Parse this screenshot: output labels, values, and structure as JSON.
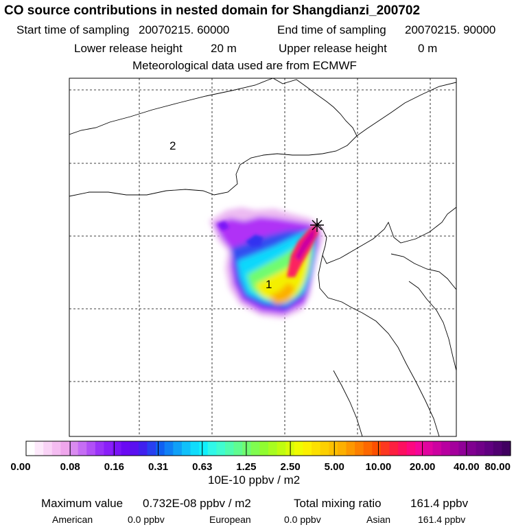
{
  "title": "CO  source contributions in nested domain for Shangdianzi_200702",
  "start_label": "Start time of sampling",
  "start_value": "20070215. 60000",
  "end_label": "End time of sampling",
  "end_value": "20070215. 90000",
  "lower_label": "Lower release height",
  "lower_value": "20 m",
  "upper_label": "Upper release height",
  "upper_value": "0 m",
  "met_line": "Meteorological data used are from ECMWF",
  "map": {
    "region_labels": [
      {
        "text": "2"
      },
      {
        "text": "1"
      }
    ],
    "receptor_marker": "star-marker"
  },
  "colorbar": {
    "tick_labels": [
      "0.00",
      "0.08",
      "0.16",
      "0.31",
      "0.63",
      "1.25",
      "2.50",
      "5.00",
      "10.00",
      "20.00",
      "40.00",
      "80.00"
    ],
    "colors": [
      "#ffffff",
      "#fde9fb",
      "#f9d3f6",
      "#f4bcf1",
      "#efa6ec",
      "#d98bf0",
      "#c56df4",
      "#b150f6",
      "#9a33f8",
      "#8a1ff9",
      "#7a14f7",
      "#6a0af3",
      "#5a10f0",
      "#4020ee",
      "#2840f0",
      "#1060f2",
      "#1080f5",
      "#10a0f7",
      "#10c0fa",
      "#10dcfc",
      "#10f0fc",
      "#30f8e8",
      "#40fcd0",
      "#50fcb0",
      "#60fc90",
      "#70fc70",
      "#80fc50",
      "#90fc30",
      "#a8fc20",
      "#c0fc10",
      "#d8fc08",
      "#f0fc00",
      "#fcf000",
      "#fce000",
      "#fcd000",
      "#fcc000",
      "#fcb000",
      "#fc9800",
      "#fc8000",
      "#fc6800",
      "#fc5000",
      "#fc3820",
      "#fc2040",
      "#fc1060",
      "#fc0880",
      "#f4069a",
      "#e004a0",
      "#cc02a0",
      "#b800a0",
      "#a4009c",
      "#900098",
      "#800090",
      "#700088",
      "#600080",
      "#500070",
      "#400060"
    ],
    "unit": "10E-10 ppbv / m2"
  },
  "footer": {
    "max_label": "Maximum value",
    "max_value": "0.732E-08 ppbv / m2",
    "total_label": "Total mixing ratio",
    "total_value": "161.4 ppbv",
    "american_label": "American",
    "american_value": "0.0 ppbv",
    "european_label": "European",
    "european_value": "0.0 ppbv",
    "asian_label": "Asian",
    "asian_value": "161.4 ppbv"
  }
}
